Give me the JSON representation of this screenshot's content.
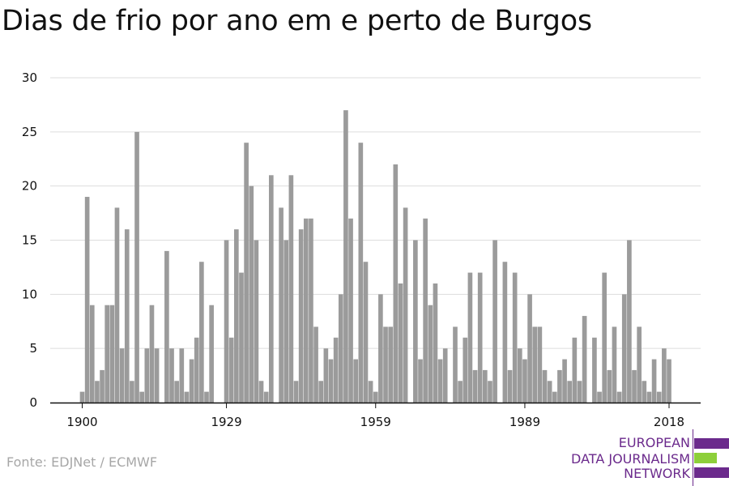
{
  "title": "Dias de frio por ano em e perto de Burgos",
  "source": "Fonte: EDJNet / ECMWF",
  "logo": {
    "lines": [
      "EUROPEAN",
      "DATA JOURNALISM",
      "NETWORK"
    ],
    "colors": {
      "purple": "#6b2a8c",
      "green": "#8dcf3a"
    }
  },
  "colors": {
    "bar": "#9b9b9b",
    "grid": "#dddddd",
    "axis": "#111111",
    "text": "#111111"
  },
  "chart_data": {
    "type": "bar",
    "title": "Dias de frio por ano em e perto de Burgos",
    "xlabel": "",
    "ylabel": "",
    "ylim": [
      0,
      30
    ],
    "yticks": [
      0,
      5,
      10,
      15,
      20,
      25,
      30
    ],
    "xticks": [
      1900,
      1929,
      1959,
      1989,
      2018
    ],
    "grid": true,
    "categories": [
      1900,
      1901,
      1902,
      1903,
      1904,
      1905,
      1906,
      1907,
      1908,
      1909,
      1910,
      1911,
      1912,
      1913,
      1914,
      1915,
      1916,
      1917,
      1918,
      1919,
      1920,
      1921,
      1922,
      1923,
      1924,
      1925,
      1926,
      1927,
      1928,
      1929,
      1930,
      1931,
      1932,
      1933,
      1934,
      1935,
      1936,
      1937,
      1938,
      1939,
      1940,
      1941,
      1942,
      1943,
      1944,
      1945,
      1946,
      1947,
      1948,
      1949,
      1950,
      1951,
      1952,
      1953,
      1954,
      1955,
      1956,
      1957,
      1958,
      1959,
      1960,
      1961,
      1962,
      1963,
      1964,
      1965,
      1966,
      1967,
      1968,
      1969,
      1970,
      1971,
      1972,
      1973,
      1974,
      1975,
      1976,
      1977,
      1978,
      1979,
      1980,
      1981,
      1982,
      1983,
      1984,
      1985,
      1986,
      1987,
      1988,
      1989,
      1990,
      1991,
      1992,
      1993,
      1994,
      1995,
      1996,
      1997,
      1998,
      1999,
      2000,
      2001,
      2002,
      2003,
      2004,
      2005,
      2006,
      2007,
      2008,
      2009,
      2010,
      2011,
      2012,
      2013,
      2014,
      2015,
      2016,
      2017,
      2018
    ],
    "values": [
      1,
      19,
      9,
      2,
      3,
      9,
      9,
      18,
      5,
      16,
      2,
      25,
      1,
      5,
      9,
      5,
      0,
      14,
      5,
      2,
      5,
      1,
      4,
      6,
      13,
      1,
      9,
      0,
      0,
      15,
      6,
      16,
      12,
      24,
      20,
      15,
      2,
      1,
      21,
      0,
      18,
      15,
      21,
      2,
      16,
      17,
      17,
      7,
      2,
      5,
      4,
      6,
      10,
      27,
      17,
      4,
      24,
      13,
      2,
      1,
      10,
      7,
      7,
      22,
      11,
      18,
      0,
      15,
      4,
      17,
      9,
      11,
      4,
      5,
      0,
      7,
      2,
      6,
      12,
      3,
      12,
      3,
      2,
      15,
      0,
      13,
      3,
      12,
      5,
      4,
      10,
      7,
      7,
      3,
      2,
      1,
      3,
      4,
      2,
      6,
      2,
      8,
      0,
      6,
      1,
      12,
      3,
      7,
      1,
      10,
      15,
      3,
      7,
      2,
      1,
      4,
      1,
      5,
      4
    ]
  }
}
